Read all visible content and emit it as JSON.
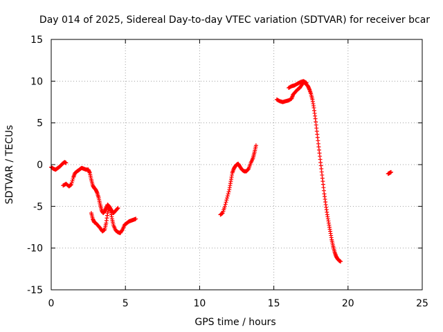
{
  "chart_data": {
    "type": "scatter",
    "title": "Day 014 of 2025, Sidereal Day-to-day VTEC variation (SDTVAR) for receiver bcar",
    "xlabel": "GPS time / hours",
    "ylabel": "SDTVAR / TECUs",
    "xlim": [
      0,
      25
    ],
    "ylim": [
      -15,
      15
    ],
    "xticks": [
      0,
      5,
      10,
      15,
      20,
      25
    ],
    "yticks": [
      -15,
      -10,
      -5,
      0,
      5,
      10,
      15
    ],
    "xtick_labels": [
      "0",
      "5",
      "10",
      "15",
      "20",
      "25"
    ],
    "ytick_labels": [
      "-15",
      "-10",
      "-5",
      "0",
      "5",
      "10",
      "15"
    ],
    "grid": true,
    "marker": "+",
    "color": "#ff0000",
    "series": [
      {
        "name": "segment-1",
        "x": [
          0.0,
          0.15,
          0.3,
          0.45,
          0.6,
          0.75,
          0.9,
          1.0
        ],
        "y": [
          -0.3,
          -0.5,
          -0.6,
          -0.4,
          -0.2,
          0.1,
          0.3,
          0.2
        ]
      },
      {
        "name": "segment-2",
        "x": [
          0.8,
          1.0,
          1.2,
          1.35,
          1.5,
          1.6,
          1.75,
          1.9,
          2.05,
          2.2,
          2.35,
          2.5,
          2.6,
          2.7,
          2.8,
          2.9,
          3.0,
          3.1,
          3.2,
          3.3,
          3.4,
          3.5,
          3.6,
          3.7,
          3.8,
          3.9,
          4.0,
          4.1,
          4.2,
          4.35,
          4.5
        ],
        "y": [
          -2.5,
          -2.3,
          -2.6,
          -2.4,
          -1.5,
          -1.0,
          -0.8,
          -0.6,
          -0.4,
          -0.5,
          -0.6,
          -0.6,
          -1.0,
          -1.8,
          -2.5,
          -2.8,
          -3.0,
          -3.4,
          -4.0,
          -4.8,
          -5.5,
          -5.8,
          -5.6,
          -5.2,
          -4.8,
          -5.0,
          -5.3,
          -5.6,
          -5.8,
          -5.5,
          -5.2
        ]
      },
      {
        "name": "segment-3",
        "x": [
          2.7,
          2.8,
          2.9,
          3.0,
          3.15,
          3.3,
          3.45,
          3.6,
          3.7,
          3.8,
          3.9,
          4.0,
          4.1,
          4.2,
          4.35,
          4.5,
          4.65,
          4.8,
          4.95,
          5.1,
          5.25,
          5.4,
          5.55,
          5.7
        ],
        "y": [
          -5.8,
          -6.5,
          -6.9,
          -7.0,
          -7.3,
          -7.6,
          -8.0,
          -7.8,
          -7.0,
          -5.8,
          -5.0,
          -5.5,
          -6.5,
          -7.3,
          -7.9,
          -8.1,
          -8.2,
          -7.8,
          -7.2,
          -7.0,
          -6.8,
          -6.7,
          -6.6,
          -6.5
        ]
      },
      {
        "name": "segment-4",
        "x": [
          11.4,
          11.55,
          11.7,
          11.85,
          12.0,
          12.1,
          12.2,
          12.3,
          12.4,
          12.5,
          12.6,
          12.7,
          12.85,
          13.0,
          13.15,
          13.3,
          13.45,
          13.6,
          13.7,
          13.8
        ],
        "y": [
          -6.0,
          -5.8,
          -5.0,
          -4.0,
          -3.0,
          -2.0,
          -1.0,
          -0.5,
          -0.2,
          0.0,
          0.1,
          -0.2,
          -0.6,
          -0.8,
          -0.8,
          -0.5,
          0.2,
          0.8,
          1.5,
          2.3
        ]
      },
      {
        "name": "segment-5",
        "x": [
          15.2,
          15.4,
          15.6,
          15.8,
          16.0,
          16.2,
          16.3,
          16.45,
          16.6,
          16.75,
          16.9,
          17.0,
          17.1,
          17.2,
          17.3,
          17.4,
          17.5,
          17.6,
          17.7,
          17.8,
          17.9,
          18.0,
          18.1,
          18.2,
          18.3,
          18.4,
          18.5,
          18.6,
          18.7,
          18.8,
          18.9,
          19.0,
          19.1,
          19.2,
          19.3,
          19.4,
          19.5
        ],
        "y": [
          7.8,
          7.6,
          7.5,
          7.6,
          7.7,
          7.9,
          8.4,
          8.7,
          9.0,
          9.2,
          9.6,
          9.9,
          9.8,
          9.6,
          9.4,
          9.0,
          8.5,
          7.8,
          6.8,
          5.5,
          4.0,
          2.5,
          1.0,
          -0.5,
          -2.0,
          -3.5,
          -4.8,
          -6.0,
          -7.0,
          -8.0,
          -9.0,
          -9.8,
          -10.5,
          -11.0,
          -11.3,
          -11.5,
          -11.6
        ]
      },
      {
        "name": "segment-6",
        "x": [
          16.0,
          16.2,
          16.4,
          16.6,
          16.8,
          17.0,
          17.2
        ],
        "y": [
          9.2,
          9.4,
          9.5,
          9.7,
          9.9,
          10.0,
          9.8
        ]
      },
      {
        "name": "segment-7",
        "x": [
          22.7,
          22.8,
          22.9
        ],
        "y": [
          -1.1,
          -1.0,
          -0.9
        ]
      }
    ]
  }
}
